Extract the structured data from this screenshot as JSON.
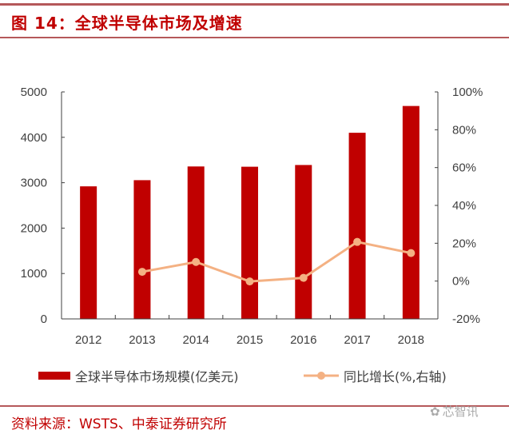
{
  "title": "图 14：全球半导体市场及增速",
  "source": "资料来源：WSTS、中泰证券研究所",
  "watermark": "芯智讯",
  "chart_data": {
    "type": "bar+line",
    "categories": [
      "2012",
      "2013",
      "2014",
      "2015",
      "2016",
      "2017",
      "2018"
    ],
    "series": [
      {
        "name": "全球半导体市场规模(亿美元)",
        "type": "bar",
        "axis": "left",
        "color": "#c00000",
        "values": [
          2920,
          3056,
          3358,
          3352,
          3390,
          4100,
          4690
        ]
      },
      {
        "name": "同比增长(%,右轴)",
        "type": "line",
        "axis": "right",
        "color": "#f4b183",
        "values": [
          null,
          4.9,
          10.1,
          -0.2,
          1.7,
          20.7,
          14.8
        ]
      }
    ],
    "left_axis": {
      "ylim": [
        0,
        5000
      ],
      "ticks": [
        "0",
        "1000",
        "2000",
        "3000",
        "4000",
        "5000"
      ]
    },
    "right_axis": {
      "ylim": [
        -20,
        100
      ],
      "ticks": [
        "-20%",
        "0%",
        "20%",
        "40%",
        "60%",
        "80%",
        "100%"
      ]
    },
    "grid": false,
    "legend_placement": "bottom"
  }
}
